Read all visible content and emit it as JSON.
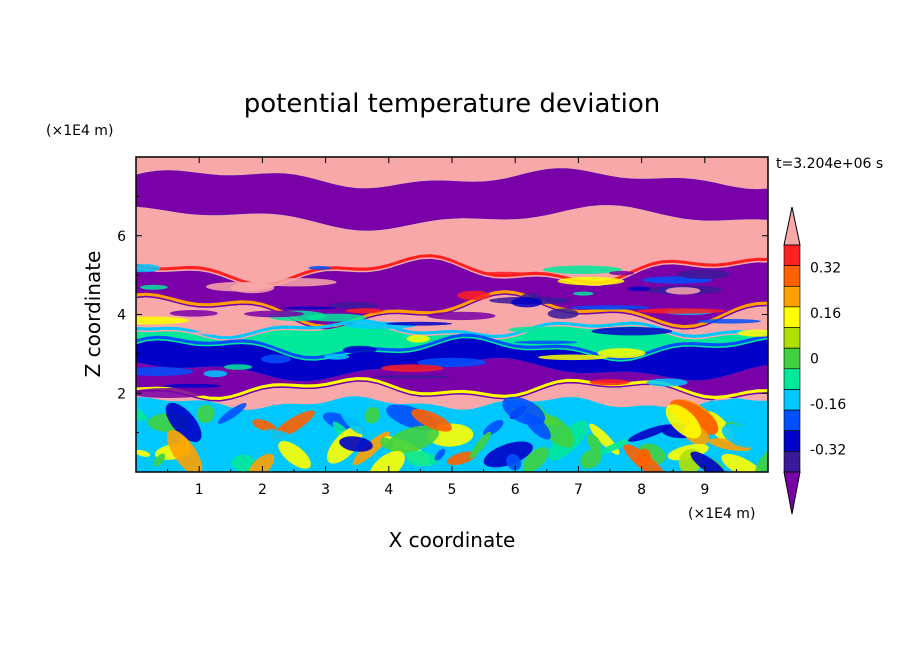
{
  "chart_data": {
    "type": "heatmap",
    "title": "potential temperature deviation",
    "xlabel": "X coordinate",
    "ylabel": "Z coordinate",
    "x_unit": "(×1E4 m)",
    "y_unit": "(×1E4 m)",
    "time_label": "t=3.204e+06 s",
    "xlim": [
      0,
      10
    ],
    "ylim": [
      0,
      8
    ],
    "x_ticks": [
      "1",
      "2",
      "3",
      "4",
      "5",
      "6",
      "7",
      "8",
      "9"
    ],
    "y_ticks": [
      "2",
      "4",
      "6"
    ],
    "colorbar": {
      "colors": [
        "#7a00a8",
        "#3a1a9a",
        "#0000c8",
        "#0050ff",
        "#00c8ff",
        "#00e89a",
        "#40d040",
        "#b0e000",
        "#ffff00",
        "#ffa000",
        "#ff6000",
        "#ff2020",
        "#f8a8a8"
      ],
      "labels": [
        "0.32",
        "0.16",
        "0",
        "-0.16",
        "-0.32"
      ],
      "label_values": [
        0.32,
        0.16,
        0,
        -0.16,
        -0.32
      ],
      "extend": "both"
    },
    "layers": [
      {
        "z_range": [
          7.5,
          8.0
        ],
        "dominant": "pink"
      },
      {
        "z_range": [
          6.2,
          7.5
        ],
        "dominant": "purple"
      },
      {
        "z_range": [
          5.0,
          6.2
        ],
        "dominant": "pink"
      },
      {
        "z_range": [
          4.0,
          5.0
        ],
        "dominant": "purple"
      },
      {
        "z_range": [
          2.0,
          4.0
        ],
        "dominant": "mixed blue/cyan/purple"
      },
      {
        "z_range": [
          0.0,
          2.0
        ],
        "dominant": "cyan/green/yellow"
      }
    ]
  }
}
